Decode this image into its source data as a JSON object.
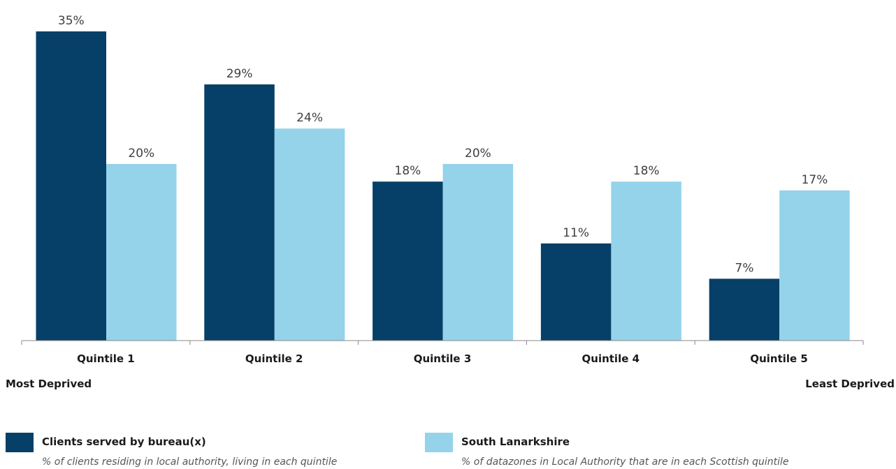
{
  "chart_data": {
    "type": "bar",
    "categories": [
      "Quintile 1",
      "Quintile 2",
      "Quintile 3",
      "Quintile 4",
      "Quintile 5"
    ],
    "series": [
      {
        "name": "Clients served by bureau(x)",
        "description": "% of clients residing in local authority, living in each quintile",
        "color": "#063f67",
        "values": [
          35,
          29,
          18,
          11,
          7
        ],
        "labels": [
          "35%",
          "29%",
          "18%",
          "11%",
          "7%"
        ]
      },
      {
        "name": "South Lanarkshire",
        "description": "% of datazones in Local Authority that are in each Scottish quintile",
        "color": "#94d3ea",
        "values": [
          20,
          24,
          20,
          18,
          17
        ],
        "labels": [
          "20%",
          "24%",
          "20%",
          "18%",
          "17%"
        ]
      }
    ],
    "ylim": [
      0,
      35
    ],
    "grid": false,
    "legend_position": "bottom",
    "annotations": {
      "left": "Most Deprived",
      "right": "Least Deprived"
    }
  }
}
